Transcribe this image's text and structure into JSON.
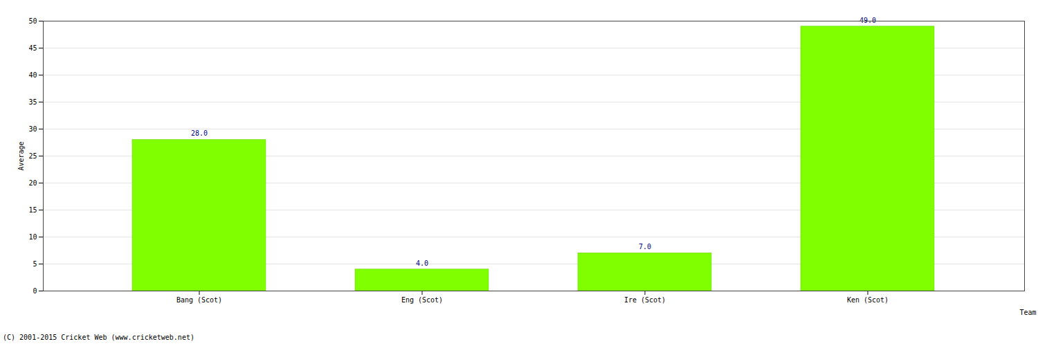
{
  "chart_data": {
    "type": "bar",
    "categories": [
      "Bang (Scot)",
      "Eng (Scot)",
      "Ire (Scot)",
      "Ken (Scot)"
    ],
    "values": [
      28,
      4,
      7,
      49
    ],
    "value_labels": [
      "28.0",
      "4.0",
      "7.0",
      "49.0"
    ],
    "data_labels": true,
    "color": "#80ff00",
    "x_label": "Team",
    "y_label": "Average",
    "caption": "(C) 2001-2015 Cricket Web (www.cricketweb.net)",
    "ylim": [
      0,
      50
    ],
    "yticks": [
      0,
      5,
      10,
      15,
      20,
      25,
      30,
      35,
      40,
      45,
      50
    ],
    "grid": true
  }
}
